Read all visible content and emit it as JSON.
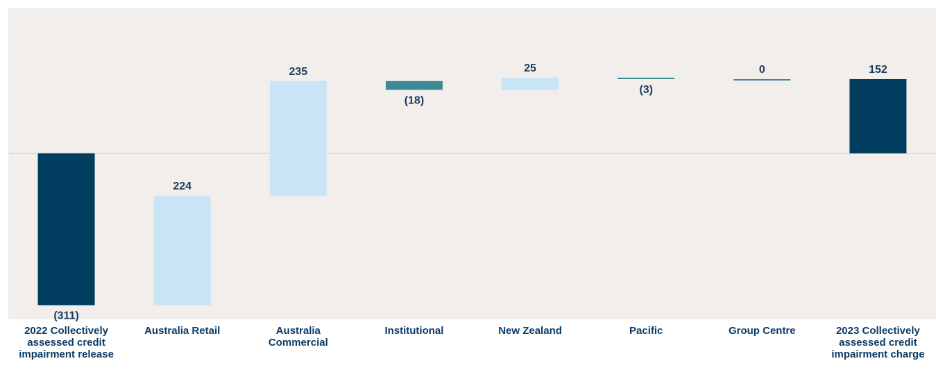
{
  "chart_data": {
    "type": "waterfall",
    "categories": [
      "2022 Collectively assessed credit impairment release",
      "Australia Retail",
      "Australia Commercial",
      "Institutional",
      "New Zealand",
      "Pacific",
      "Group Centre",
      "2023 Collectively assessed credit impairment charge"
    ],
    "values": [
      -311,
      224,
      235,
      -18,
      25,
      -3,
      0,
      152
    ],
    "value_labels": [
      "(311)",
      "224",
      "235",
      "(18)",
      "25",
      "(3)",
      "0",
      "152"
    ],
    "measure": [
      "absolute",
      "relative",
      "relative",
      "relative",
      "relative",
      "relative",
      "relative",
      "absolute"
    ],
    "color_total": "#003d5e",
    "color_increase": "#c9e4f5",
    "color_decrease": "#3d8a96",
    "ylim": [
      -340,
      297
    ]
  }
}
